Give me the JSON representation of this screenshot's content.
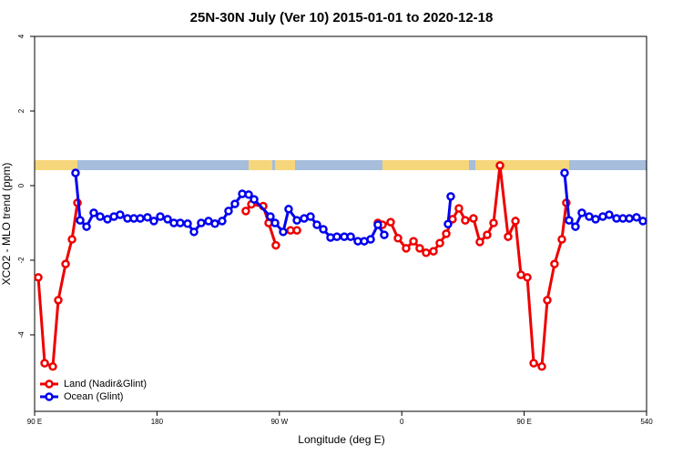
{
  "chart_data": {
    "type": "line",
    "title": "25N-30N July (Ver 10)   2015-01-01 to 2020-12-18",
    "x_label": "Longitude (deg E)",
    "y_label": "XCO2 - MLO trend (ppm)",
    "xlim": [
      90,
      540
    ],
    "xticks": [
      {
        "value": 90,
        "label": "90 E"
      },
      180,
      {
        "value": 270,
        "label": "90 W"
      },
      {
        "value": 360,
        "label": "0"
      },
      {
        "value": 450,
        "label": "90 E"
      },
      540
    ],
    "ylim": [
      -6.05,
      4
    ],
    "yticks": [
      -4,
      -2,
      0,
      2,
      4
    ],
    "legend": "bottom-left",
    "series": [
      {
        "name": "Land (Nadir&Glint)",
        "color": "#ee0000",
        "x": [
          92.7,
          97.4,
          103.4,
          107.4,
          112.8,
          117.5,
          121.5,
          null,
          245.3,
          249.4,
          258.1,
          262.1,
          267.4,
          null,
          278.2,
          282.9,
          null,
          342.4,
          345.8,
          351.8,
          357.2,
          363.2,
          368.6,
          373.2,
          377.9,
          383.3,
          388,
          392.7,
          397.3,
          402,
          406.7,
          412.7,
          417.4,
          422.8,
          427.5,
          432.2,
          438.2,
          443.6,
          447.6,
          452.3,
          457,
          463,
          467,
          472.3,
          477.7,
          481
        ],
        "values": [
          -2.46,
          -4.76,
          -4.85,
          -3.07,
          -2.1,
          -1.44,
          -0.46,
          null,
          -0.68,
          -0.5,
          -0.55,
          -1.0,
          -1.6,
          null,
          -1.2,
          -1.2,
          null,
          -1.0,
          -1.05,
          -0.98,
          -1.41,
          -1.68,
          -1.49,
          -1.68,
          -1.8,
          -1.76,
          -1.54,
          -1.29,
          -0.9,
          -0.61,
          -0.93,
          -0.88,
          -1.51,
          -1.32,
          -1.0,
          0.54,
          -1.37,
          -0.95,
          -2.39,
          -2.46,
          -4.76,
          -4.85,
          -3.07,
          -2.1,
          -1.44,
          -0.46
        ]
      },
      {
        "name": "Ocean (Glint)",
        "color": "#0000ee",
        "x": [
          120.1,
          123.5,
          128.2,
          133.5,
          138.2,
          143.6,
          148.3,
          152.9,
          158.3,
          163,
          167.7,
          173,
          177.7,
          182.4,
          187.8,
          192.4,
          197.1,
          202.5,
          207.2,
          212.5,
          217.9,
          222.6,
          227.9,
          232.6,
          237.3,
          242.7,
          247.4,
          251.4,
          263.4,
          266.8,
          272.8,
          276.8,
          282.9,
          288.2,
          292.9,
          297.6,
          302.3,
          307.6,
          312.3,
          317.7,
          322.4,
          327.7,
          332.4,
          337.1,
          342.4,
          347.1,
          null,
          394,
          396,
          null,
          479.7,
          483,
          487.7,
          492.4,
          497.8,
          502.5,
          507.8,
          512.5,
          517.9,
          522.6,
          527.3,
          532.6,
          537.3
        ],
        "values": [
          0.34,
          -0.93,
          -1.1,
          -0.73,
          -0.83,
          -0.9,
          -0.83,
          -0.78,
          -0.88,
          -0.88,
          -0.88,
          -0.85,
          -0.95,
          -0.83,
          -0.9,
          -1.0,
          -1.0,
          -1.02,
          -1.24,
          -1.0,
          -0.95,
          -1.02,
          -0.95,
          -0.68,
          -0.49,
          -0.22,
          -0.24,
          -0.37,
          -0.83,
          -1.0,
          -1.24,
          -0.63,
          -0.93,
          -0.88,
          -0.83,
          -1.05,
          -1.17,
          -1.39,
          -1.37,
          -1.37,
          -1.37,
          -1.49,
          -1.49,
          -1.44,
          -1.05,
          -1.32,
          null,
          -1.03,
          -0.29,
          null,
          0.34,
          -0.93,
          -1.1,
          -0.73,
          -0.83,
          -0.9,
          -0.83,
          -0.78,
          -0.88,
          -0.88,
          -0.88,
          -0.85,
          -0.95
        ]
      }
    ]
  }
}
